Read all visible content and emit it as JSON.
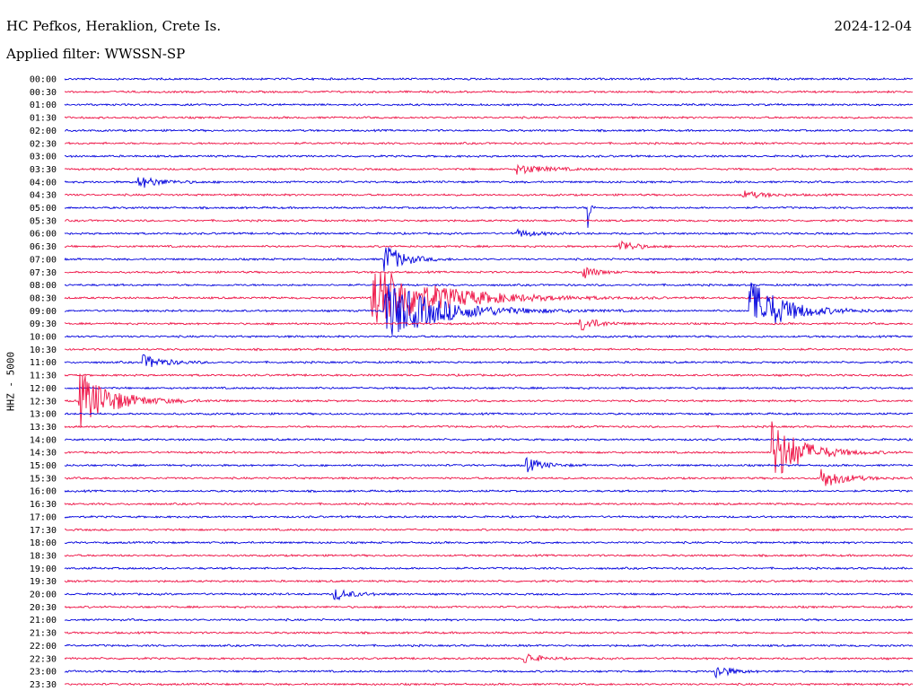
{
  "header": {
    "station": "HC Pefkos, Heraklion, Crete Is.",
    "date": "2024-12-04",
    "filter": "Applied filter: WWSSN-SP"
  },
  "axis": {
    "channel_label": "HHZ - 5000"
  },
  "colors": {
    "even": "#0000dd",
    "odd": "#ee1144"
  },
  "chart_data": {
    "type": "line",
    "title": "HC Pefkos, Heraklion, Crete Is.",
    "ylabel": "HHZ - 5000",
    "row_labels": [
      "00:00",
      "00:30",
      "01:00",
      "01:30",
      "02:00",
      "02:30",
      "03:00",
      "03:30",
      "04:00",
      "04:30",
      "05:00",
      "05:30",
      "06:00",
      "06:30",
      "07:00",
      "07:30",
      "08:00",
      "08:30",
      "09:00",
      "09:30",
      "10:00",
      "10:30",
      "11:00",
      "11:30",
      "12:00",
      "12:30",
      "13:00",
      "13:30",
      "14:00",
      "14:30",
      "15:00",
      "15:30",
      "16:00",
      "16:30",
      "17:00",
      "17:30",
      "18:00",
      "18:30",
      "19:00",
      "19:30",
      "20:00",
      "20:30",
      "21:00",
      "21:30",
      "22:00",
      "22:30",
      "23:00",
      "23:30"
    ],
    "row_color_pattern": [
      "blue",
      "red"
    ],
    "events": [
      {
        "row": "03:30",
        "minute": 16.0,
        "amplitude": 0.4,
        "dur": 1.5
      },
      {
        "row": "04:00",
        "minute": 2.6,
        "amplitude": 0.5,
        "dur": 1.2
      },
      {
        "row": "04:30",
        "minute": 24.0,
        "amplitude": 0.3,
        "dur": 1.2
      },
      {
        "row": "05:00",
        "minute": 18.5,
        "amplitude": 2.6,
        "dur": 0.1
      },
      {
        "row": "06:00",
        "minute": 16.0,
        "amplitude": 0.3,
        "dur": 1.0
      },
      {
        "row": "06:30",
        "minute": 19.6,
        "amplitude": 0.6,
        "dur": 0.8
      },
      {
        "row": "07:00",
        "minute": 11.3,
        "amplitude": 1.3,
        "dur": 1.0
      },
      {
        "row": "07:30",
        "minute": 18.3,
        "amplitude": 0.6,
        "dur": 0.7
      },
      {
        "row": "08:30",
        "minute": 10.8,
        "amplitude": 2.8,
        "dur": 3.5
      },
      {
        "row": "09:00",
        "minute": 11.3,
        "amplitude": 2.4,
        "dur": 3.0
      },
      {
        "row": "09:00",
        "minute": 24.2,
        "amplitude": 2.6,
        "dur": 1.8
      },
      {
        "row": "09:30",
        "minute": 18.2,
        "amplitude": 0.7,
        "dur": 0.9
      },
      {
        "row": "11:00",
        "minute": 2.7,
        "amplitude": 0.6,
        "dur": 1.2
      },
      {
        "row": "12:30",
        "minute": 0.5,
        "amplitude": 2.3,
        "dur": 1.8
      },
      {
        "row": "14:30",
        "minute": 25.0,
        "amplitude": 2.6,
        "dur": 1.6
      },
      {
        "row": "15:00",
        "minute": 16.3,
        "amplitude": 0.6,
        "dur": 0.9
      },
      {
        "row": "15:30",
        "minute": 26.7,
        "amplitude": 0.9,
        "dur": 1.2
      },
      {
        "row": "20:00",
        "minute": 9.5,
        "amplitude": 0.5,
        "dur": 1.0
      },
      {
        "row": "22:30",
        "minute": 16.2,
        "amplitude": 0.6,
        "dur": 0.7
      },
      {
        "row": "23:00",
        "minute": 23.0,
        "amplitude": 0.6,
        "dur": 0.8
      }
    ]
  }
}
